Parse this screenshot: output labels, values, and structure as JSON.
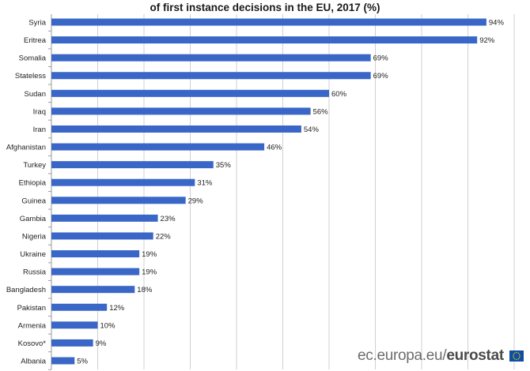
{
  "header": {
    "title_line2": "of first instance decisions in the EU, 2017 (%)"
  },
  "watermark": {
    "site": "ec.europa.eu/",
    "brand": "eurostat",
    "flag_icon": "eu-flag-icon"
  },
  "colors": {
    "bar": "#3a67c7",
    "grid": "#d0d0d0",
    "axis": "#9a9a9a"
  },
  "chart_data": {
    "type": "bar",
    "orientation": "horizontal",
    "title": "of first instance decisions in the EU, 2017 (%)",
    "categories": [
      "Syria",
      "Eritrea",
      "Somalia",
      "Stateless",
      "Sudan",
      "Iraq",
      "Iran",
      "Afghanistan",
      "Turkey",
      "Ethiopia",
      "Guinea",
      "Gambia",
      "Nigeria",
      "Ukraine",
      "Russia",
      "Bangladesh",
      "Pakistan",
      "Armenia",
      "Kosovo*",
      "Albania"
    ],
    "values": [
      94,
      92,
      69,
      69,
      60,
      56,
      54,
      46,
      35,
      31,
      29,
      23,
      22,
      19,
      19,
      18,
      12,
      10,
      9,
      5
    ],
    "labels": [
      "94%",
      "92%",
      "69%",
      "69%",
      "60%",
      "56%",
      "54%",
      "46%",
      "35%",
      "31%",
      "29%",
      "23%",
      "22%",
      "19%",
      "19%",
      "18%",
      "12%",
      "10%",
      "9%",
      "5%"
    ],
    "xlim": [
      0,
      100
    ],
    "grid": true,
    "xticks_visible": false
  }
}
